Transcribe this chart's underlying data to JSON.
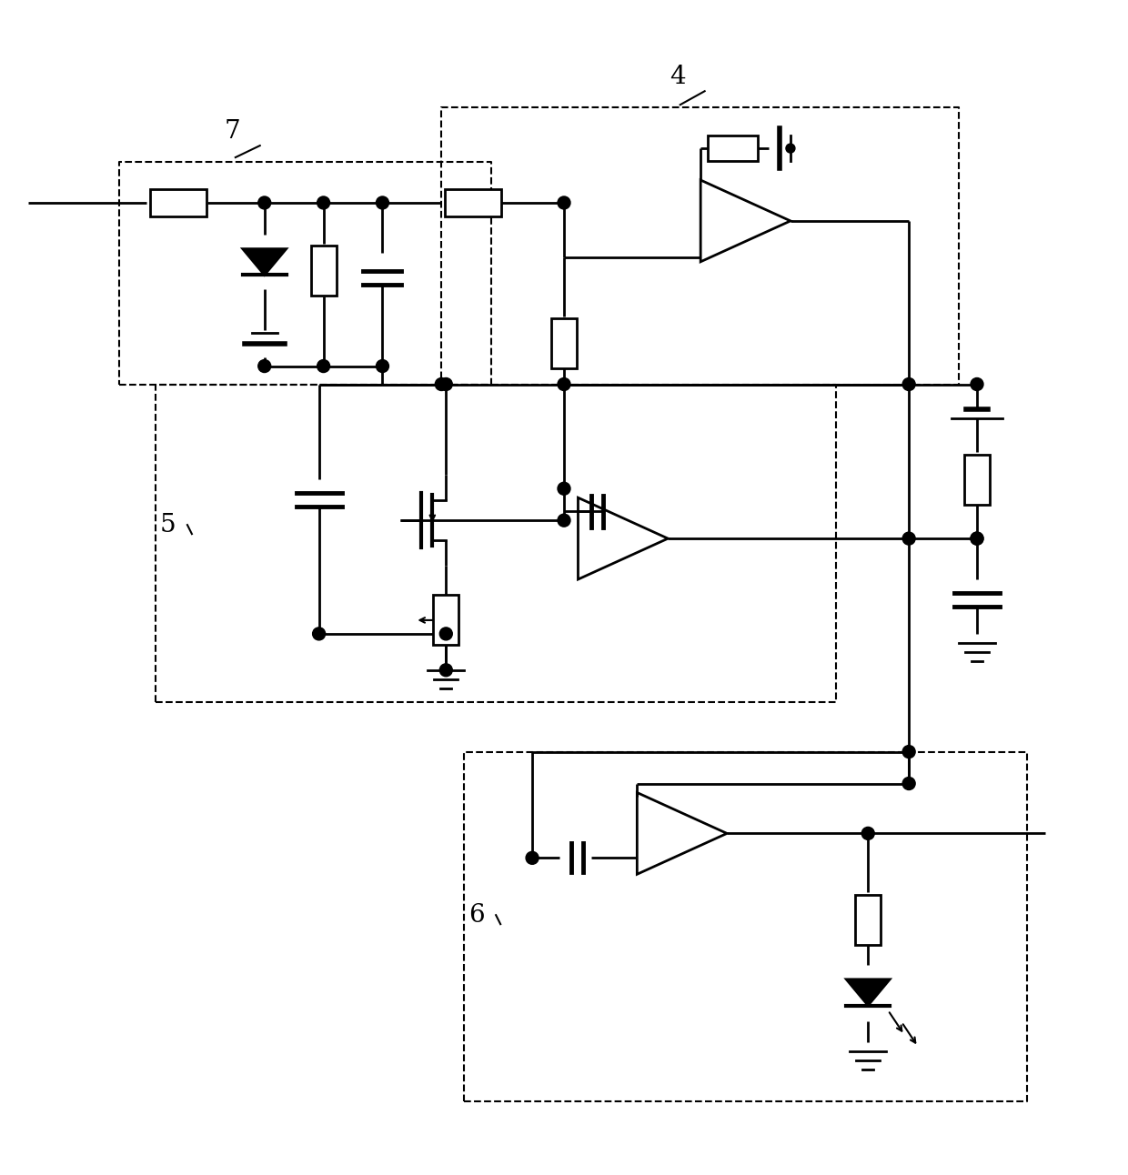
{
  "fig_width": 12.4,
  "fig_height": 12.92,
  "bg_color": "#ffffff",
  "lc": "#000000",
  "lw": 2.0,
  "dlw": 1.5
}
